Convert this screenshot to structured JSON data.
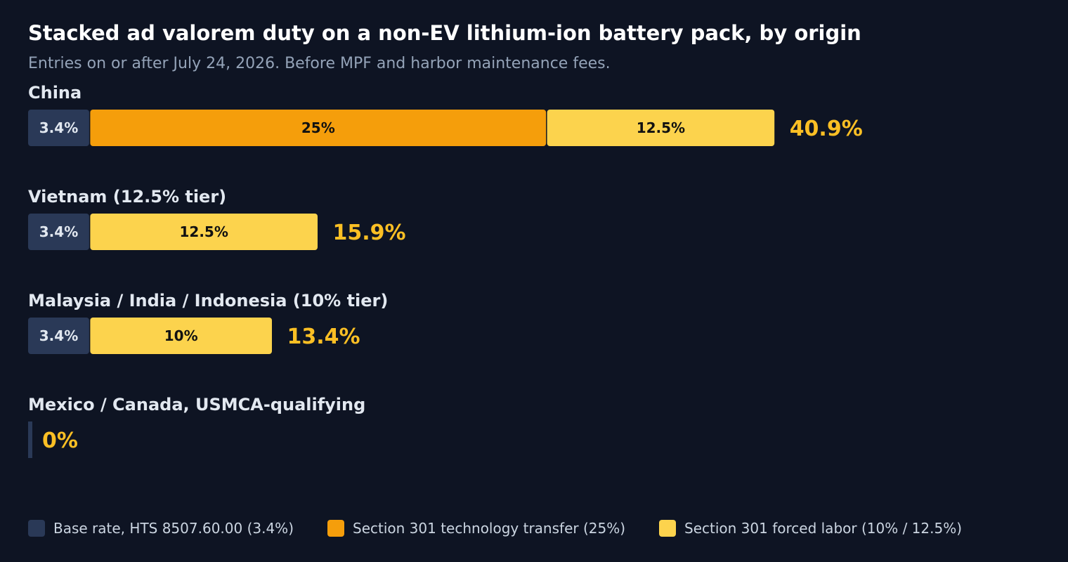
{
  "chart_data": {
    "type": "bar",
    "orientation": "horizontal",
    "stacked": true,
    "title": "Stacked ad valorem duty on a non-EV lithium-ion battery pack, by origin",
    "subtitle": "Entries on or after July 24, 2026. Before MPF and harbor maintenance fees.",
    "unit": "%",
    "categories": [
      "China",
      "Vietnam (12.5% tier)",
      "Malaysia / India / Indonesia (10% tier)",
      "Mexico / Canada, USMCA-qualifying"
    ],
    "series": [
      {
        "name": "Base rate, HTS 8507.60.00 (3.4%)",
        "color": "#2a3957",
        "label_color": "#e2e8f0",
        "values": [
          3.4,
          3.4,
          3.4,
          0
        ],
        "labels": [
          "3.4%",
          "3.4%",
          "3.4%",
          ""
        ]
      },
      {
        "name": "Section 301 technology transfer (25%)",
        "color": "#f59e0b",
        "label_color": "#111111",
        "values": [
          25,
          0,
          0,
          0
        ],
        "labels": [
          "25%",
          "",
          "",
          ""
        ]
      },
      {
        "name": "Section 301 forced labor (10% / 12.5%)",
        "color": "#fcd34d",
        "label_color": "#111111",
        "values": [
          12.5,
          12.5,
          10,
          0
        ],
        "labels": [
          "12.5%",
          "12.5%",
          "10%",
          ""
        ]
      }
    ],
    "totals": [
      "40.9%",
      "15.9%",
      "13.4%",
      "0%"
    ],
    "total_color": "#fbbf24",
    "xlim": [
      0,
      56.6
    ],
    "grid": false,
    "legend_position": "bottom"
  }
}
